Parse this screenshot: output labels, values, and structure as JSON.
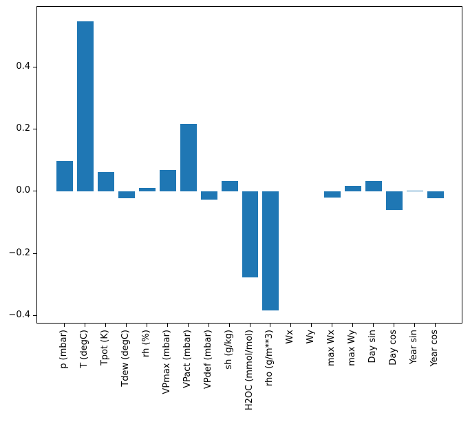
{
  "figure": {
    "background": "#ffffff",
    "axis_color": "#000000",
    "text_color": "#000000"
  },
  "chart_data": {
    "type": "bar",
    "title": "",
    "xlabel": "",
    "ylabel": "",
    "grid": false,
    "legend": "none",
    "bar_color": "#1f77b4",
    "bar_width": 0.8,
    "xlim": [
      -1.34,
      19.34
    ],
    "ylim": [
      -0.427,
      0.595
    ],
    "categories": [
      "p (mbar)",
      "T (degC)",
      "Tpot (K)",
      "Tdew (degC)",
      "rh (%)",
      "VPmax (mbar)",
      "VPact (mbar)",
      "VPdef (mbar)",
      "sh (g/kg)",
      "H2OC (mmol/mol)",
      "rho (g/m**3)",
      "Wx",
      "Wy",
      "max Wx",
      "max Wy",
      "Day sin",
      "Day cos",
      "Year sin",
      "Year cos"
    ],
    "values": [
      0.098,
      0.549,
      0.064,
      -0.021,
      0.013,
      0.069,
      0.218,
      -0.026,
      0.034,
      -0.276,
      -0.382,
      0.0,
      0.0,
      -0.02,
      0.019,
      0.035,
      -0.06,
      0.003,
      -0.021
    ],
    "yticks": [
      {
        "value": 0.4,
        "label": "0.4"
      },
      {
        "value": 0.2,
        "label": "0.2"
      },
      {
        "value": 0.0,
        "label": "0.0"
      },
      {
        "value": -0.2,
        "label": "−0.2"
      },
      {
        "value": -0.4,
        "label": "−0.4"
      }
    ]
  }
}
